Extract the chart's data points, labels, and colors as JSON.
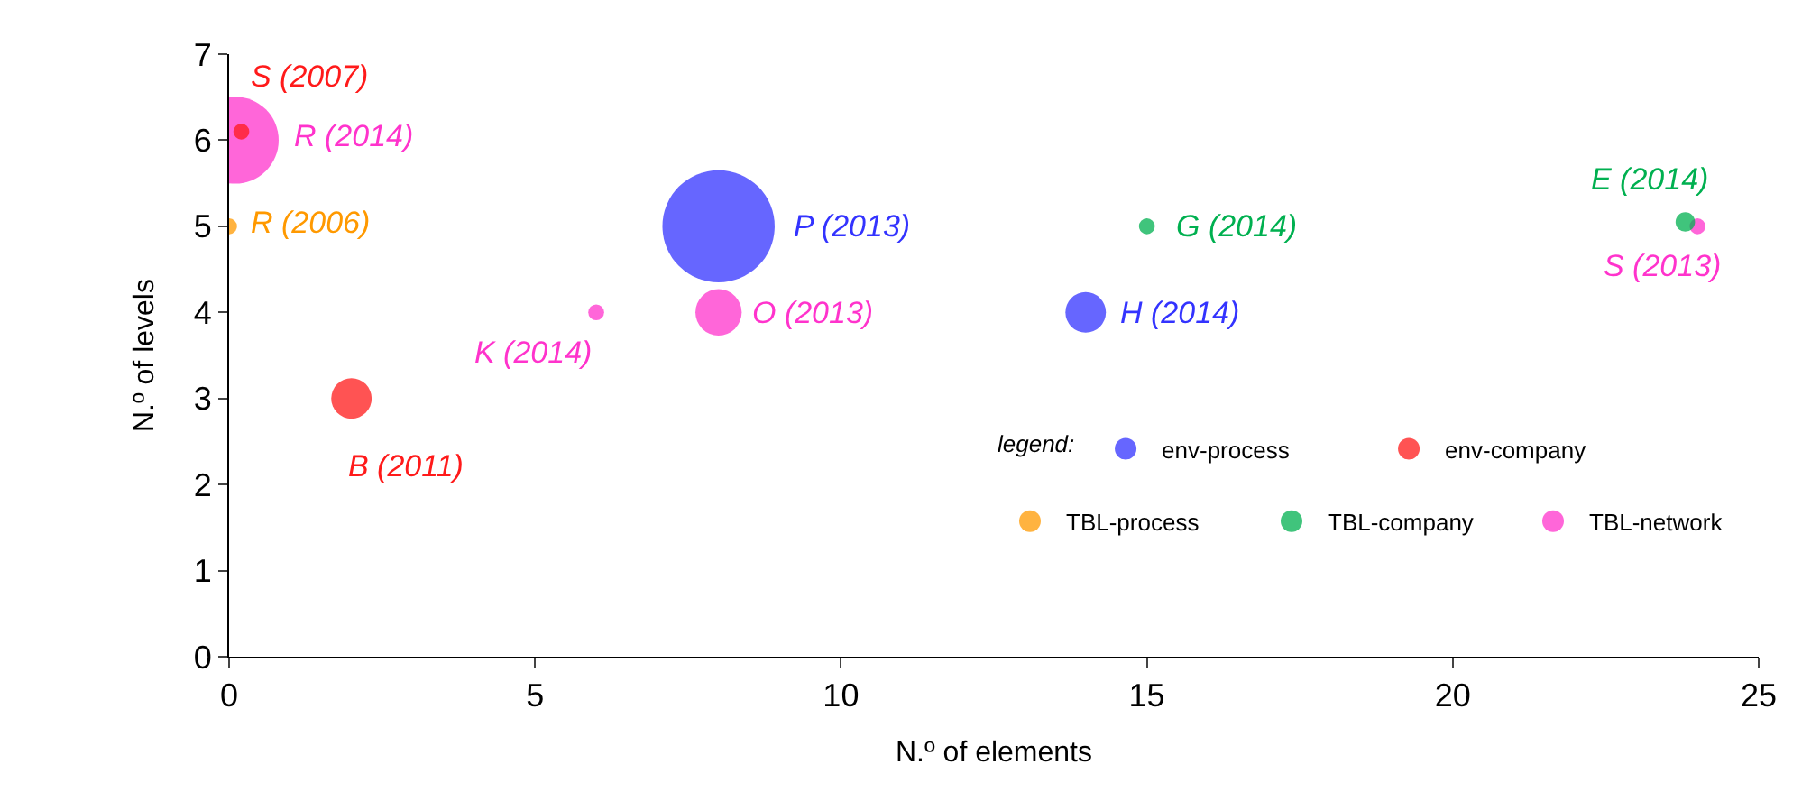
{
  "chart_data": {
    "type": "bubble",
    "xlabel": "N.º of elements",
    "ylabel": "N.º of levels",
    "legend_title": "legend:",
    "legend": "bottom right",
    "grid": false,
    "xlim": [
      0,
      25
    ],
    "xticks": [
      0,
      5,
      10,
      15,
      20,
      25
    ],
    "ylim": [
      0,
      7
    ],
    "yticks": [
      0,
      1,
      2,
      3,
      4,
      5,
      6,
      7
    ],
    "series": [
      {
        "name": "env-process",
        "color": "#3333ff",
        "x": [
          8,
          14
        ],
        "values": [
          5,
          4
        ],
        "sizes": [
          1,
          0.13
        ]
      },
      {
        "name": "env-company",
        "color": "#ff1a1a",
        "x": [
          0.2,
          2
        ],
        "values": [
          6.1,
          3
        ],
        "sizes": [
          0.02,
          0.13
        ]
      },
      {
        "name": "TBL-process",
        "color": "#ff9900",
        "x": [
          0
        ],
        "values": [
          5
        ],
        "sizes": [
          0.02
        ]
      },
      {
        "name": "TBL-company",
        "color": "#00b050",
        "x": [
          15,
          23.8
        ],
        "values": [
          5,
          5.05
        ],
        "sizes": [
          0.02,
          0.03
        ]
      },
      {
        "name": "TBL-network",
        "color": "#ff33cc",
        "x": [
          0.1,
          6,
          8,
          24
        ],
        "values": [
          6,
          4,
          4,
          5
        ],
        "sizes": [
          0.6,
          0.02,
          0.17,
          0.02
        ]
      }
    ],
    "annotations": [
      {
        "text": "S (2007)",
        "x": 0.2,
        "y": 6.1
      },
      {
        "text": "R (2014)",
        "x": 0.1,
        "y": 6
      },
      {
        "text": "R (2006)",
        "x": 0,
        "y": 5
      },
      {
        "text": "P (2013)",
        "x": 8,
        "y": 5
      },
      {
        "text": "G (2014)",
        "x": 15,
        "y": 5
      },
      {
        "text": "E (2014)",
        "x": 23.8,
        "y": 5.05
      },
      {
        "text": "S (2013)",
        "x": 24,
        "y": 5
      },
      {
        "text": "K (2014)",
        "x": 6,
        "y": 4
      },
      {
        "text": "O (2013)",
        "x": 8,
        "y": 4
      },
      {
        "text": "H (2014)",
        "x": 14,
        "y": 4
      },
      {
        "text": "B (2011)",
        "x": 2,
        "y": 3
      }
    ]
  }
}
